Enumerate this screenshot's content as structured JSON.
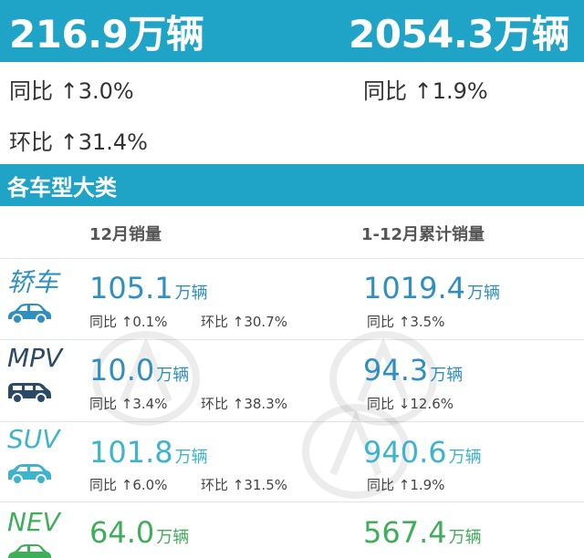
{
  "summary": {
    "month_total": "216.9万辆",
    "ytd_total": "2054.3万辆",
    "month_yoy": "同比 ↑3.0%",
    "ytd_yoy": "同比 ↑1.9%",
    "month_mom": "环比 ↑31.4%"
  },
  "section": {
    "title": "各车型大类"
  },
  "columns": {
    "month": "12月销量",
    "ytd": "1-12月累计销量"
  },
  "colors": {
    "band": "#1fa4c8",
    "sedan": "#2f8fc0",
    "mpv": "#2f8fc0",
    "suv": "#3cb4cf",
    "nev": "#3fae5a"
  },
  "categories": [
    {
      "label": "轿车",
      "icon": "sedan-icon",
      "month_value": "105.1",
      "month_unit": "万辆",
      "month_yoy": "同比 ↑0.1%",
      "month_mom": "环比 ↑30.7%",
      "ytd_value": "1019.4",
      "ytd_unit": "万辆",
      "ytd_yoy": "同比 ↑3.5%"
    },
    {
      "label": "MPV",
      "icon": "mpv-icon",
      "month_value": "10.0",
      "month_unit": "万辆",
      "month_yoy": "同比 ↑3.4%",
      "month_mom": "环比 ↑38.3%",
      "ytd_value": "94.3",
      "ytd_unit": "万辆",
      "ytd_yoy": "同比 ↓12.6%"
    },
    {
      "label": "SUV",
      "icon": "suv-icon",
      "month_value": "101.8",
      "month_unit": "万辆",
      "month_yoy": "同比 ↑6.0%",
      "month_mom": "环比 ↑31.5%",
      "ytd_value": "940.6",
      "ytd_unit": "万辆",
      "ytd_yoy": "同比 ↑1.9%"
    },
    {
      "label": "NEV",
      "icon": "nev-icon",
      "month_value": "64.0",
      "month_unit": "万辆",
      "ytd_value": "567.4",
      "ytd_unit": "万辆"
    }
  ]
}
